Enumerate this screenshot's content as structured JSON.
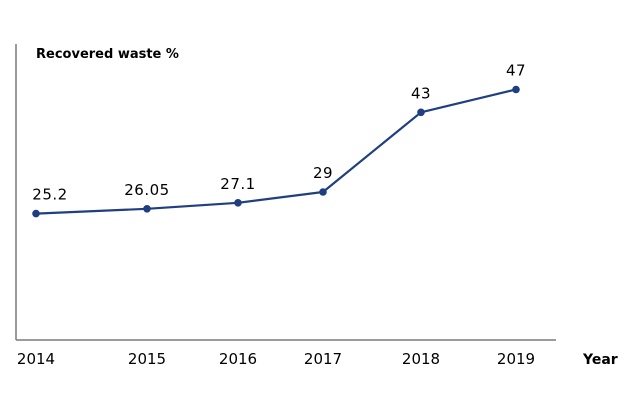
{
  "chart_data": {
    "type": "line",
    "title": "",
    "ylabel": "Recovered waste %",
    "xlabel": "Year",
    "categories": [
      "2014",
      "2015",
      "2016",
      "2017",
      "2018",
      "2019"
    ],
    "series": [
      {
        "values": [
          25.2,
          26.05,
          27.1,
          29,
          43,
          47
        ],
        "labels": [
          "25.2",
          "26.05",
          "27.1",
          "29",
          "43",
          "47"
        ]
      }
    ],
    "ylim": [
      3,
      55
    ],
    "grid": false,
    "legend": "none"
  },
  "colors": {
    "line": "#1f3f80",
    "axis": "#7a7a7a"
  }
}
